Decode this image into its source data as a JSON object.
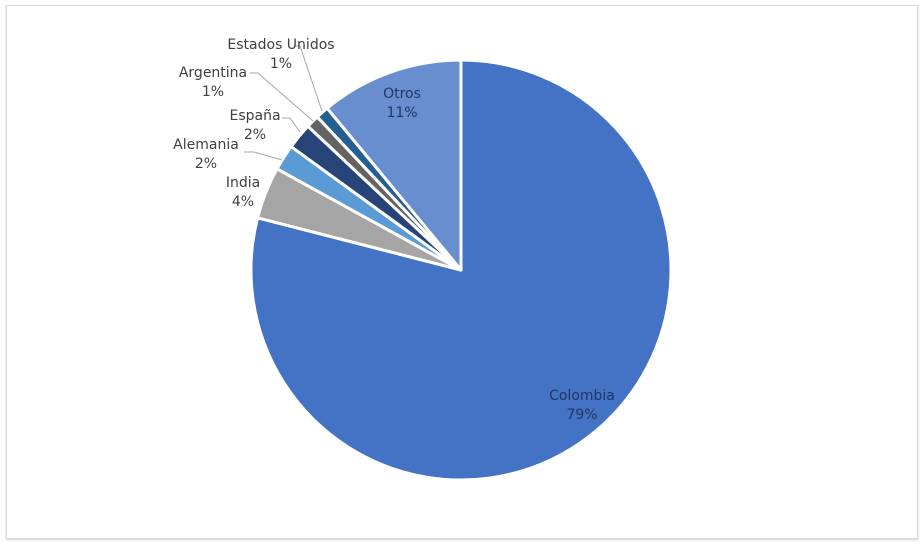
{
  "chart_data": {
    "type": "pie",
    "title": "",
    "start_angle_deg": 0,
    "direction": "clockwise",
    "slices": [
      {
        "label": "Colombia",
        "value": 79,
        "display": "79%",
        "color": "#4472C4"
      },
      {
        "label": "India",
        "value": 4,
        "display": "4%",
        "color": "#A5A5A5"
      },
      {
        "label": "Alemania",
        "value": 2,
        "display": "2%",
        "color": "#5B9BD5"
      },
      {
        "label": "España",
        "value": 2,
        "display": "2%",
        "color": "#264478"
      },
      {
        "label": "Argentina",
        "value": 1,
        "display": "1%",
        "color": "#636363"
      },
      {
        "label": "Estados Unidos",
        "value": 1,
        "display": "1%",
        "color": "#255E91"
      },
      {
        "label": "Otros",
        "value": 11,
        "display": "11%",
        "color": "#698ED0"
      }
    ]
  },
  "labels": {
    "colombia": {
      "name": "Colombia",
      "pct": "79%"
    },
    "india": {
      "name": "India",
      "pct": "4%"
    },
    "alemania": {
      "name": "Alemania",
      "pct": "2%"
    },
    "espana": {
      "name": "España",
      "pct": "2%"
    },
    "argentina": {
      "name": "Argentina",
      "pct": "1%"
    },
    "eeuu": {
      "name": "Estados Unidos",
      "pct": "1%"
    },
    "otros": {
      "name": "Otros",
      "pct": "11%"
    }
  }
}
